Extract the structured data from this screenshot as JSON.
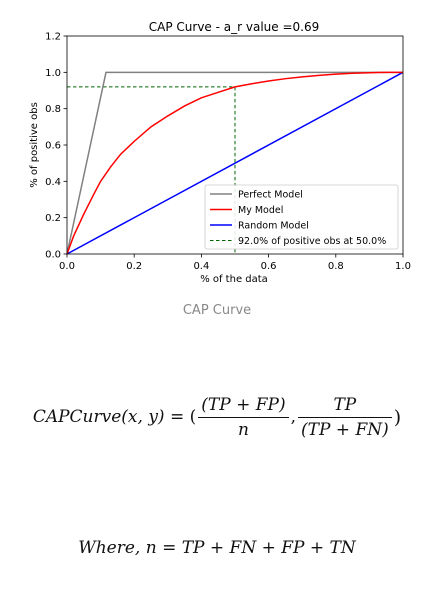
{
  "chart_data": {
    "type": "line",
    "title": "CAP Curve - a_r value =0.69",
    "xlabel": "% of the data",
    "ylabel": "% of positive obs",
    "xlim": [
      0.0,
      1.0
    ],
    "ylim": [
      0.0,
      1.2
    ],
    "xticks": [
      0.0,
      0.2,
      0.4,
      0.6,
      0.8,
      1.0
    ],
    "xtick_labels": [
      "0.0",
      "0.2",
      "0.4",
      "0.6",
      "0.8",
      "1.0"
    ],
    "yticks": [
      0.0,
      0.2,
      0.4,
      0.6,
      0.8,
      1.0,
      1.2
    ],
    "ytick_labels": [
      "0.0",
      "0.2",
      "0.4",
      "0.6",
      "0.8",
      "1.0",
      "1.2"
    ],
    "grid": false,
    "legend_position": "lower-right",
    "series": [
      {
        "name": "Perfect Model",
        "color": "#808080",
        "style": "solid",
        "x": [
          0.0,
          0.116,
          1.0
        ],
        "y": [
          0.0,
          1.0,
          1.0
        ]
      },
      {
        "name": "My Model",
        "color": "#ff0000",
        "style": "solid",
        "x": [
          0.0,
          0.02,
          0.05,
          0.08,
          0.1,
          0.13,
          0.16,
          0.2,
          0.25,
          0.3,
          0.35,
          0.4,
          0.45,
          0.5,
          0.55,
          0.6,
          0.65,
          0.7,
          0.75,
          0.8,
          0.85,
          0.9,
          0.95,
          1.0
        ],
        "y": [
          0.0,
          0.1,
          0.22,
          0.33,
          0.4,
          0.48,
          0.55,
          0.62,
          0.7,
          0.76,
          0.815,
          0.86,
          0.89,
          0.92,
          0.937,
          0.952,
          0.965,
          0.975,
          0.983,
          0.99,
          0.995,
          0.998,
          1.0,
          1.0
        ]
      },
      {
        "name": "Random Model",
        "color": "#0000ff",
        "style": "solid",
        "x": [
          0.0,
          1.0
        ],
        "y": [
          0.0,
          1.0
        ]
      },
      {
        "name": "92.0% of positive obs at 50.0%",
        "color": "#006400",
        "style": "dashed",
        "x": [
          0.0,
          0.5,
          0.5
        ],
        "y": [
          0.92,
          0.92,
          0.0
        ]
      }
    ]
  },
  "caption": "CAP Curve",
  "formula1": {
    "lhs": "CAPCurve",
    "args": "(x, y)",
    "eq": " = (",
    "frac1_num": "(TP + FP)",
    "frac1_den": "n",
    "sep": ",",
    "frac2_num": "TP",
    "frac2_den": "(TP + FN)",
    "close": ")"
  },
  "formula2": {
    "text": "Where, n = TP + FN + FP + TN"
  }
}
